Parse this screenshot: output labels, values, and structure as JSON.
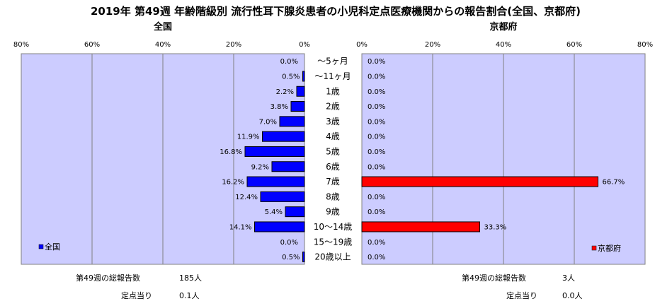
{
  "chart_data": {
    "type": "bar",
    "title": "2019年 第49週 年齢階級別 流行性耳下腺炎患者の小児科定点医療機関からの報告割合(全国、京都府)",
    "categories": [
      "～5ヶ月",
      "～11ヶ月",
      "1歳",
      "2歳",
      "3歳",
      "4歳",
      "5歳",
      "6歳",
      "7歳",
      "8歳",
      "9歳",
      "10～14歳",
      "15～19歳",
      "20歳以上"
    ],
    "panels": [
      {
        "name": "全国",
        "color": "#0000ff",
        "direction": "left",
        "values": [
          0.0,
          0.5,
          2.2,
          3.8,
          7.0,
          11.9,
          16.8,
          9.2,
          16.2,
          12.4,
          5.4,
          14.1,
          0.0,
          0.5
        ],
        "value_labels": [
          "0.0%",
          "0.5%",
          "2.2%",
          "3.8%",
          "7.0%",
          "11.9%",
          "16.8%",
          "9.2%",
          "16.2%",
          "12.4%",
          "5.4%",
          "14.1%",
          "0.0%",
          "0.5%"
        ],
        "xlim": [
          0,
          80
        ],
        "ticks": [
          "80%",
          "60%",
          "40%",
          "20%",
          "0%"
        ],
        "legend": "全国",
        "legend_position": "bottom-left"
      },
      {
        "name": "京都府",
        "color": "#ff0000",
        "direction": "right",
        "values": [
          0.0,
          0.0,
          0.0,
          0.0,
          0.0,
          0.0,
          0.0,
          0.0,
          66.7,
          0.0,
          0.0,
          33.3,
          0.0,
          0.0
        ],
        "value_labels": [
          "0.0%",
          "0.0%",
          "0.0%",
          "0.0%",
          "0.0%",
          "0.0%",
          "0.0%",
          "0.0%",
          "66.7%",
          "0.0%",
          "0.0%",
          "33.3%",
          "0.0%",
          "0.0%"
        ],
        "xlim": [
          0,
          80
        ],
        "ticks": [
          "0%",
          "20%",
          "40%",
          "60%",
          "80%"
        ],
        "legend": "京都府",
        "legend_position": "bottom-right"
      }
    ],
    "plot_background": "#ccccff",
    "grid": true
  },
  "footer": {
    "left": {
      "total_label": "第49週の総報告数",
      "total_value": "185人",
      "per_label": "定点当り",
      "per_value": "0.1人"
    },
    "right": {
      "total_label": "第49週の総報告数",
      "total_value": "3人",
      "per_label": "定点当り",
      "per_value": "0.0人"
    }
  }
}
